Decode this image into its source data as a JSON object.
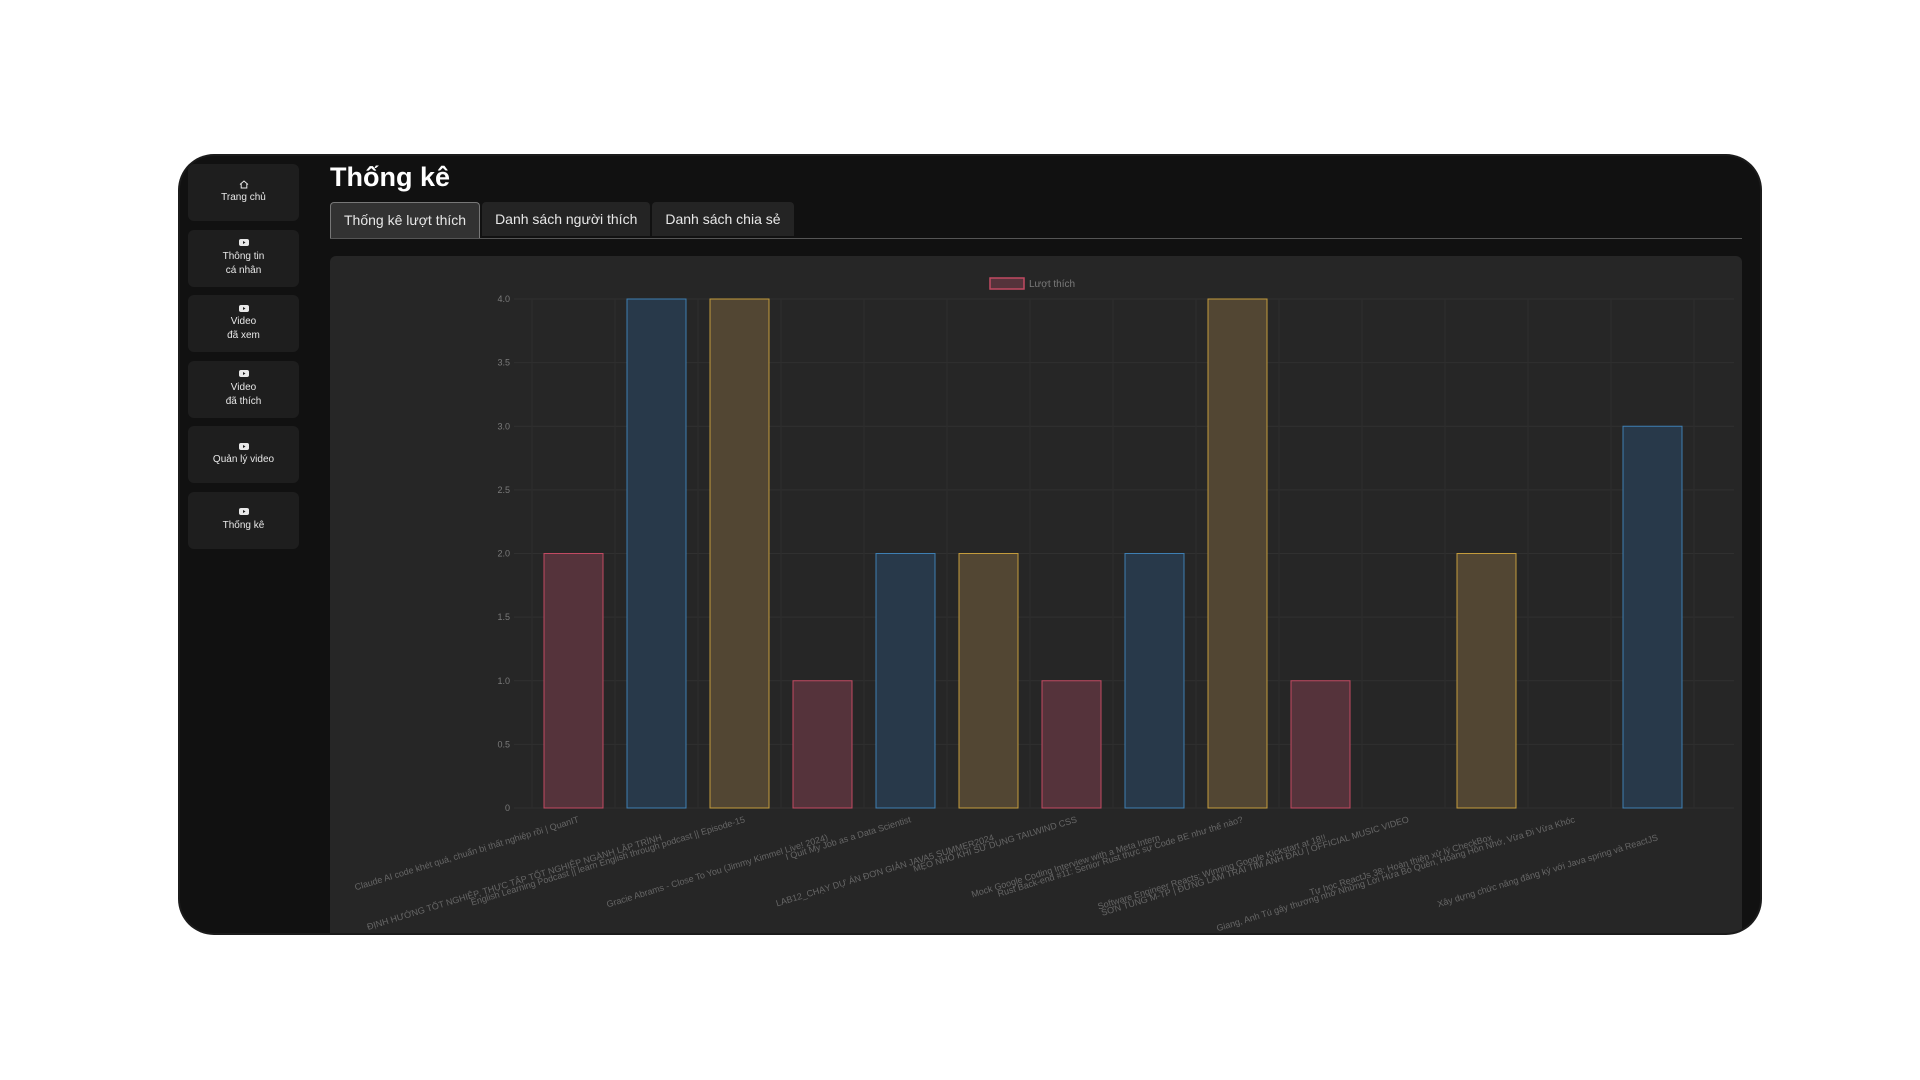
{
  "sidebar": {
    "items": [
      {
        "icon": "home-icon",
        "line1": "Trang chủ",
        "line2": ""
      },
      {
        "icon": "video-icon",
        "line1": "Thông tin",
        "line2": "cá nhân"
      },
      {
        "icon": "video-icon",
        "line1": "Video",
        "line2": "đã xem"
      },
      {
        "icon": "video-icon",
        "line1": "Video",
        "line2": "đã thích"
      },
      {
        "icon": "video-icon",
        "line1": "Quản lý video",
        "line2": ""
      },
      {
        "icon": "video-icon",
        "line1": "Thống kê",
        "line2": ""
      }
    ]
  },
  "page": {
    "title": "Thống kê"
  },
  "tabs": [
    {
      "label": "Thống kê lượt thích"
    },
    {
      "label": "Danh sách người thích"
    },
    {
      "label": "Danh sách chia sẻ"
    }
  ],
  "colors": {
    "red_fill": "#55333b",
    "red_stroke": "#c24a62",
    "blue_fill": "#28394a",
    "blue_stroke": "#3e7fb3",
    "yellow_fill": "#524633",
    "yellow_stroke": "#c49c3c"
  },
  "chart_data": {
    "type": "bar",
    "legend": {
      "label": "Lượt thích",
      "placement": "top"
    },
    "ylim": [
      0,
      4
    ],
    "yticks": [
      "0",
      "0.5",
      "1.0",
      "1.5",
      "2.0",
      "2.5",
      "3.0",
      "3.5",
      "4.0"
    ],
    "grid": true,
    "categories": [
      "Claude AI code khét quá, chuẩn bị thất nghiệp rồi | QuanIT",
      "ĐỊNH HƯỚNG TỐT NGHIỆP, THỰC TẬP TỐT NGHIỆP NGÀNH LẬP TRÌNH",
      "English Learning Podcast || learn English through podcast || Episode-15",
      "Gracie Abrams - Close To You (Jimmy Kimmel Live! 2024)",
      "I Quit My Job as a Data Scientist",
      "LAB12_CHẠY DỰ ÁN ĐƠN GIẢN JAVA5 SUMMER2024",
      "MẸO NHỎ KHI SỬ DỤNG TAILWIND CSS",
      "Mock Google Coding Interview with a Meta Intern",
      "Rust Back-end #11: Senior Rust thực sự Code BE như thế nào?",
      "Software Engineer Reacts: Winning Google Kickstart at 18!!",
      "SƠN TÙNG M-TP | ĐỪNG LÀM TRÁI TIM ANH ĐAU | OFFICIAL MUSIC VIDEO",
      "Tự học ReactJs 38: Hoàn thiện xử lý CheckBox",
      "Giang, Anh Tú gây thương nhớ Những Lời Hứa Bỏ Quên, Hoàng Hôn Nhớ, Vừa Đi Vừa Khóc",
      "Xây dựng chức năng đăng ký với Java spring và ReactJS"
    ],
    "values": [
      2,
      4,
      4,
      1,
      2,
      2,
      1,
      2,
      4,
      1,
      0,
      2,
      0,
      3
    ],
    "bar_colors": [
      "red",
      "blue",
      "yellow",
      "red",
      "blue",
      "yellow",
      "red",
      "blue",
      "yellow",
      "red",
      "blue",
      "yellow",
      "red",
      "blue"
    ]
  }
}
